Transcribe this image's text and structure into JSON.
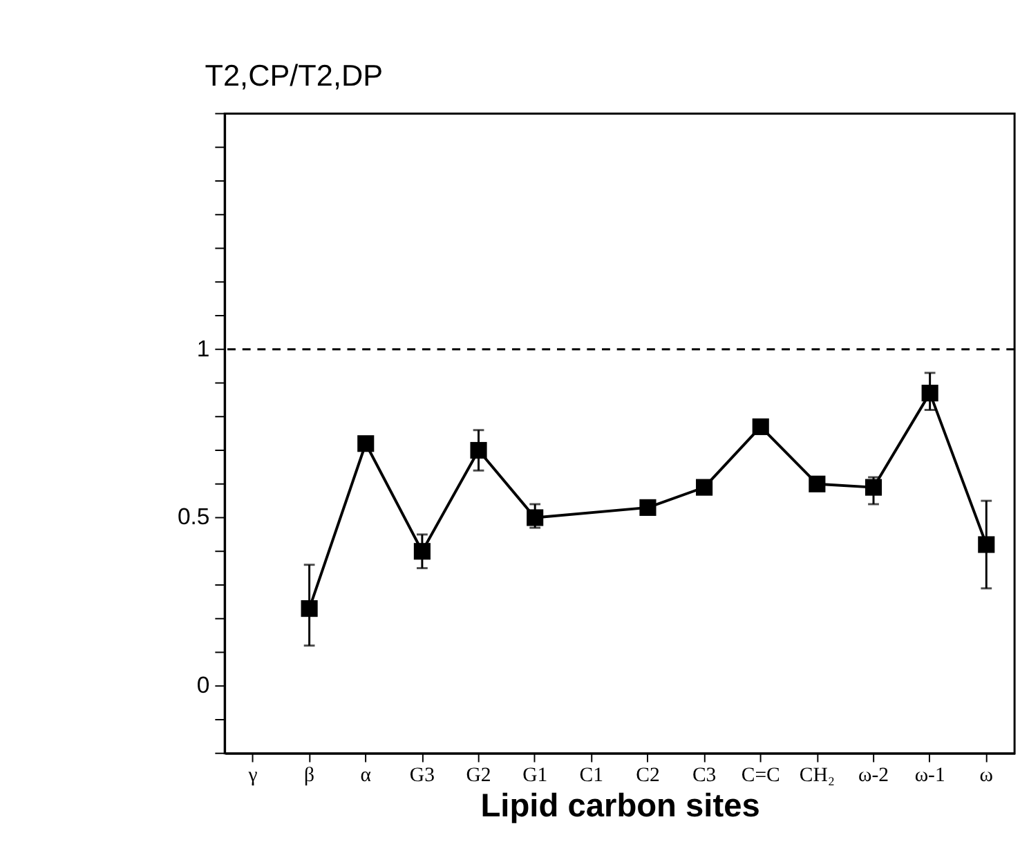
{
  "chart_data": {
    "type": "line",
    "xlabel": "Lipid carbon sites",
    "ylabel": "T2,CP/T2,DP",
    "categories": [
      "γ",
      "β",
      "α",
      "G3",
      "G2",
      "G1",
      "C1",
      "C2",
      "C3",
      "C=C",
      "CH₂",
      "ω-2",
      "ω-1",
      "ω"
    ],
    "series": [
      {
        "color": "#000000",
        "values": [
          null,
          0.23,
          0.72,
          0.4,
          0.7,
          0.5,
          null,
          0.53,
          0.59,
          0.77,
          0.6,
          0.59,
          0.87,
          0.42
        ],
        "errors": [
          null,
          [
            0.12,
            0.36
          ],
          0.01,
          [
            0.35,
            0.45
          ],
          [
            0.64,
            0.76
          ],
          [
            0.47,
            0.54
          ],
          null,
          0.01,
          0.02,
          0.01,
          0.01,
          [
            0.54,
            0.62
          ],
          [
            0.82,
            0.93
          ],
          [
            0.29,
            0.55
          ]
        ]
      }
    ],
    "marker": "square",
    "line_style": "solid",
    "grid": false,
    "legend": false,
    "ylim": [
      -0.2,
      1.7
    ],
    "yticks": [
      {
        "value": -0.2,
        "label": null
      },
      {
        "value": -0.1,
        "label": null
      },
      0,
      {
        "value": 0.1,
        "label": null
      },
      {
        "value": 0.2,
        "label": null
      },
      {
        "value": 0.3,
        "label": null
      },
      {
        "value": 0.4,
        "label": null
      },
      {
        "value": 0.5,
        "label": "0.5"
      },
      {
        "value": 0.6,
        "label": null
      },
      {
        "value": 0.7,
        "label": null
      },
      {
        "value": 0.8,
        "label": null
      },
      {
        "value": 0.9,
        "label": null
      },
      1,
      {
        "value": 1.1,
        "label": null
      },
      {
        "value": 1.2,
        "label": null
      },
      {
        "value": 1.3,
        "label": null
      },
      {
        "value": 1.4,
        "label": null
      },
      {
        "value": 1.5,
        "label": null
      },
      {
        "value": 1.6,
        "label": null
      },
      {
        "value": 1.7,
        "label": null
      }
    ],
    "ref_lines": [
      {
        "axis": "y",
        "value": 1,
        "line_style": "dashed",
        "color": "#000000"
      }
    ]
  }
}
